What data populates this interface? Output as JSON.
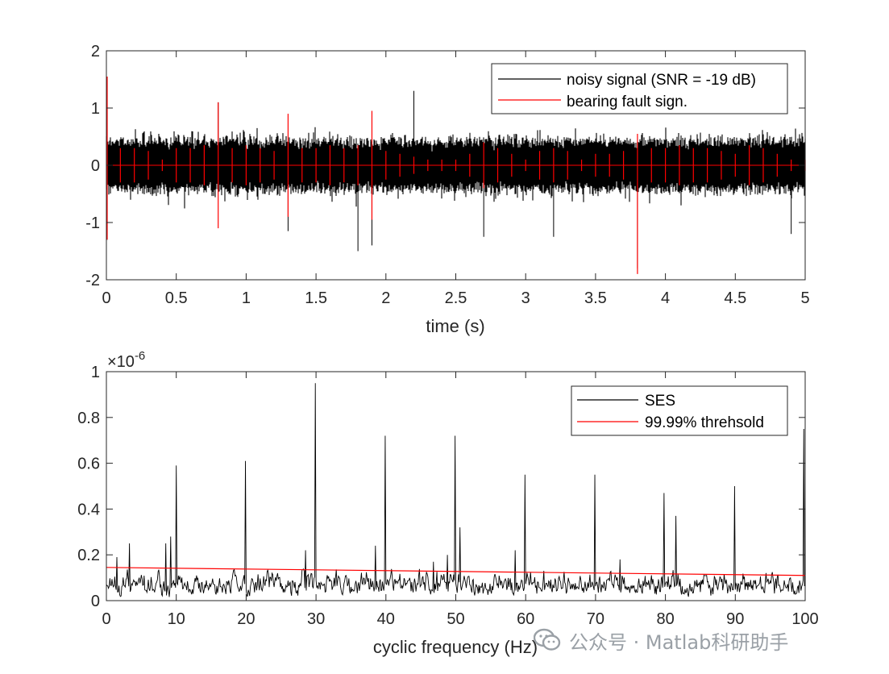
{
  "chart_data": [
    {
      "type": "line",
      "xlabel": "time (s)",
      "ylabel": "",
      "xlim": [
        0,
        5
      ],
      "ylim": [
        -2,
        2
      ],
      "xticks": [
        0,
        0.5,
        1,
        1.5,
        2,
        2.5,
        3,
        3.5,
        4,
        4.5,
        5
      ],
      "xtick_labels": [
        "0",
        "0.5",
        "1",
        "1.5",
        "2",
        "2.5",
        "3",
        "3.5",
        "4",
        "4.5",
        "5"
      ],
      "yticks": [
        -2,
        -1,
        0,
        1,
        2
      ],
      "ytick_labels": [
        "-2",
        "-1",
        "0",
        "1",
        "2"
      ],
      "legend_position": "top-right",
      "series": [
        {
          "name": "noisy signal (SNR = -19 dB)",
          "color": "#000000",
          "typical_envelope": [
            -0.45,
            0.45
          ],
          "peaks": [
            {
              "x": 0.0,
              "y": 1.55
            },
            {
              "x": 0.0,
              "y": -1.3
            },
            {
              "x": 0.8,
              "y": 1.1
            },
            {
              "x": 1.3,
              "y": -1.15
            },
            {
              "x": 1.8,
              "y": -1.5
            },
            {
              "x": 1.9,
              "y": -1.4
            },
            {
              "x": 2.2,
              "y": 1.3
            },
            {
              "x": 2.7,
              "y": -1.25
            },
            {
              "x": 3.2,
              "y": -1.25
            },
            {
              "x": 3.8,
              "y": -1.8
            },
            {
              "x": 4.9,
              "y": -1.2
            }
          ]
        },
        {
          "name": "bearing fault sign.",
          "color": "#ff0000",
          "impulse_period_s": 0.1,
          "impulses": [
            {
              "x": 0.0,
              "y": 1.55,
              "y_min": -1.3
            },
            {
              "x": 0.1,
              "y": 0.3
            },
            {
              "x": 0.2,
              "y": 0.3
            },
            {
              "x": 0.3,
              "y": 0.25
            },
            {
              "x": 0.4,
              "y": 0.1
            },
            {
              "x": 0.5,
              "y": 0.3
            },
            {
              "x": 0.6,
              "y": 0.3
            },
            {
              "x": 0.7,
              "y": 0.35
            },
            {
              "x": 0.8,
              "y": 1.1
            },
            {
              "x": 0.9,
              "y": 0.3
            },
            {
              "x": 1.0,
              "y": 0.35
            },
            {
              "x": 1.1,
              "y": 0.3
            },
            {
              "x": 1.2,
              "y": 0.25
            },
            {
              "x": 1.3,
              "y": 0.9
            },
            {
              "x": 1.4,
              "y": 0.3
            },
            {
              "x": 1.5,
              "y": 0.3
            },
            {
              "x": 1.6,
              "y": 0.35
            },
            {
              "x": 1.7,
              "y": 0.3
            },
            {
              "x": 1.8,
              "y": 0.35
            },
            {
              "x": 1.9,
              "y": 0.95
            },
            {
              "x": 2.0,
              "y": 0.25
            },
            {
              "x": 2.1,
              "y": 0.2
            },
            {
              "x": 2.2,
              "y": 0.15
            },
            {
              "x": 2.3,
              "y": 0.1
            },
            {
              "x": 2.4,
              "y": 0.1
            },
            {
              "x": 2.5,
              "y": 0.1
            },
            {
              "x": 2.6,
              "y": 0.2
            },
            {
              "x": 2.7,
              "y": 0.4
            },
            {
              "x": 2.8,
              "y": 0.3
            },
            {
              "x": 2.9,
              "y": 0.2
            },
            {
              "x": 3.0,
              "y": 0.1
            },
            {
              "x": 3.1,
              "y": 0.25
            },
            {
              "x": 3.2,
              "y": 0.3
            },
            {
              "x": 3.3,
              "y": 0.25
            },
            {
              "x": 3.4,
              "y": 0.1
            },
            {
              "x": 3.5,
              "y": 0.2
            },
            {
              "x": 3.6,
              "y": 0.2
            },
            {
              "x": 3.7,
              "y": 0.25
            },
            {
              "x": 3.8,
              "y": 0.55,
              "y_min": -1.9
            },
            {
              "x": 3.9,
              "y": 0.3
            },
            {
              "x": 4.0,
              "y": 0.3
            },
            {
              "x": 4.1,
              "y": 0.35
            },
            {
              "x": 4.2,
              "y": 0.3
            },
            {
              "x": 4.3,
              "y": 0.3
            },
            {
              "x": 4.4,
              "y": 0.25
            },
            {
              "x": 4.5,
              "y": 0.2
            },
            {
              "x": 4.6,
              "y": 0.35
            },
            {
              "x": 4.7,
              "y": 0.3
            },
            {
              "x": 4.8,
              "y": 0.2
            },
            {
              "x": 4.9,
              "y": 0.1
            },
            {
              "x": 5.0,
              "y": 0.1
            }
          ]
        }
      ]
    },
    {
      "type": "line",
      "xlabel": "cyclic frequency (Hz)",
      "ylabel": "",
      "xlim": [
        0,
        100
      ],
      "ylim": [
        0,
        1
      ],
      "y_exponent": "×10",
      "y_exponent_power": "-6",
      "xticks": [
        0,
        10,
        20,
        30,
        40,
        50,
        60,
        70,
        80,
        90,
        100
      ],
      "xtick_labels": [
        "0",
        "10",
        "20",
        "30",
        "40",
        "50",
        "60",
        "70",
        "80",
        "90",
        "100"
      ],
      "yticks": [
        0,
        0.2,
        0.4,
        0.6,
        0.8,
        1
      ],
      "ytick_labels": [
        "0",
        "0.2",
        "0.4",
        "0.6",
        "0.8",
        "1"
      ],
      "legend_position": "top-right",
      "series": [
        {
          "name": "SES",
          "color": "#000000",
          "baseline_range": [
            0.0,
            0.17
          ],
          "peaks": [
            {
              "x": 1.5,
              "y": 0.19
            },
            {
              "x": 3.3,
              "y": 0.25
            },
            {
              "x": 8.5,
              "y": 0.25
            },
            {
              "x": 9.2,
              "y": 0.28
            },
            {
              "x": 10.0,
              "y": 0.59
            },
            {
              "x": 19.9,
              "y": 0.61
            },
            {
              "x": 28.5,
              "y": 0.22
            },
            {
              "x": 29.9,
              "y": 0.95
            },
            {
              "x": 38.5,
              "y": 0.24
            },
            {
              "x": 39.9,
              "y": 0.72
            },
            {
              "x": 46.8,
              "y": 0.17
            },
            {
              "x": 48.8,
              "y": 0.2
            },
            {
              "x": 49.9,
              "y": 0.72
            },
            {
              "x": 50.6,
              "y": 0.32
            },
            {
              "x": 58.5,
              "y": 0.22
            },
            {
              "x": 59.9,
              "y": 0.55
            },
            {
              "x": 69.9,
              "y": 0.55
            },
            {
              "x": 73.5,
              "y": 0.18
            },
            {
              "x": 79.8,
              "y": 0.47
            },
            {
              "x": 81.5,
              "y": 0.37
            },
            {
              "x": 89.9,
              "y": 0.5
            },
            {
              "x": 99.8,
              "y": 0.75
            }
          ]
        },
        {
          "name": "99.99% threhsold",
          "color": "#ff0000",
          "x": [
            0,
            100
          ],
          "values": [
            0.145,
            0.11
          ]
        }
      ]
    }
  ],
  "watermark": {
    "icon": "wechat-icon",
    "text": "公众号 · Matlab科研助手"
  }
}
